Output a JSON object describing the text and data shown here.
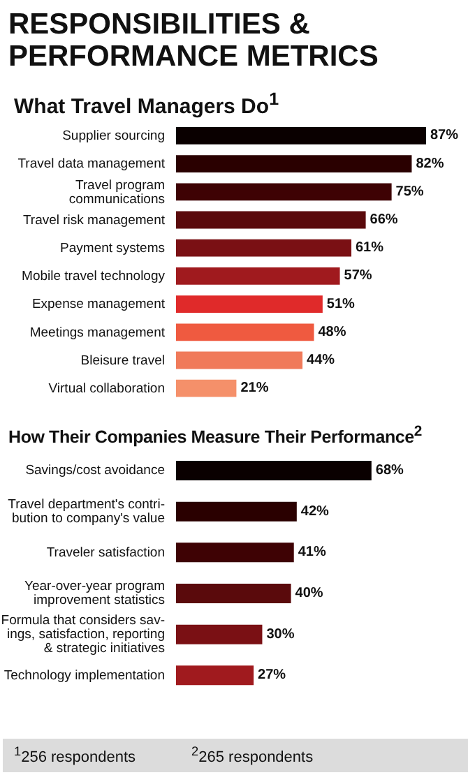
{
  "chart_data": [
    {
      "type": "bar",
      "orientation": "horizontal",
      "title": "RESPONSIBILITIES & PERFORMANCE METRICS",
      "subtitle": "What Travel Managers Do$^{1}$",
      "categories": [
        "Supplier sourcing",
        "Travel data management",
        "Travel program\ncommunications",
        "Travel risk management",
        "Payment systems",
        "Mobile travel technology",
        "Expense management",
        "Meetings management",
        "Bleisure travel",
        "Virtual collaboration"
      ],
      "values": [
        87,
        82,
        75,
        66,
        61,
        57,
        51,
        48,
        44,
        21
      ],
      "value_labels": [
        "87%",
        "82%",
        "75%",
        "66%",
        "61%",
        "57%",
        "51%",
        "48%",
        "44%",
        "21%"
      ],
      "colors": [
        "#0a0000",
        "#2a0000",
        "#3e0204",
        "#5a0a0c",
        "#7a1014",
        "#a01a1e",
        "#e02a2a",
        "#ef5a40",
        "#f07a5a",
        "#f5906a"
      ]
    },
    {
      "type": "bar",
      "orientation": "horizontal",
      "title": "How Their Companies Measure Their Performance$^{2}$",
      "categories": [
        "Savings/cost avoidance",
        "Travel department's contri-\nbution to company's value",
        "Traveler satisfaction",
        "Year-over-year program\nimprovement statistics",
        "Formula that considers sav-\nings, satisfaction, reporting\n& strategic initiatives",
        "Technology implementation"
      ],
      "values": [
        68,
        42,
        41,
        40,
        30,
        27
      ],
      "value_labels": [
        "68%",
        "42%",
        "41%",
        "40%",
        "30%",
        "27%"
      ],
      "colors": [
        "#0a0000",
        "#2a0000",
        "#3e0204",
        "#5a0a0c",
        "#7a1014",
        "#a01a1e"
      ],
      "annotations": [
        "$^{1}$256 respondents",
        "$^{2}$265 respondents"
      ]
    }
  ]
}
